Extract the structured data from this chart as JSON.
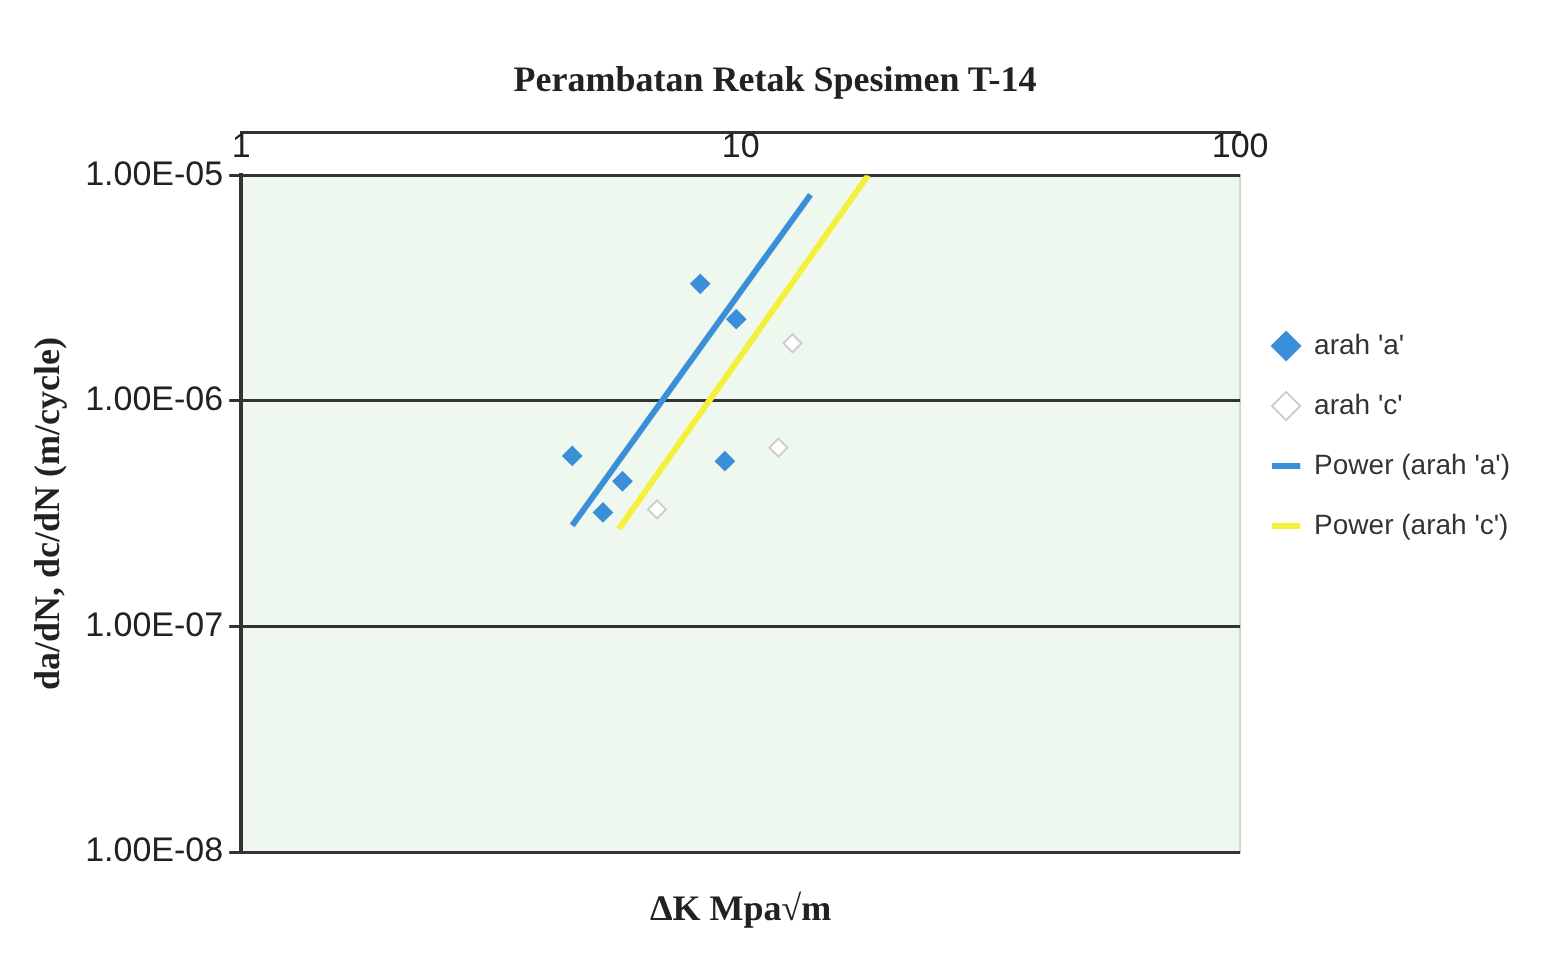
{
  "chart_data": {
    "type": "scatter",
    "title": "Perambatan Retak Spesimen T-14",
    "xlabel": "ΔK Mpa√m",
    "ylabel": "da/dN, dc/dN (m/cycle)",
    "log": "xy",
    "xlim": [
      1,
      100
    ],
    "xticks": [
      1,
      10,
      100
    ],
    "ylim": [
      1e-08,
      1e-05
    ],
    "yticks": [
      {
        "value": 1e-08,
        "label": "1.00E-08"
      },
      {
        "value": 1e-07,
        "label": "1.00E-07"
      },
      {
        "value": 1e-06,
        "label": "1.00E-06"
      },
      {
        "value": 1e-05,
        "label": "1.00E-05"
      }
    ],
    "grid": "y",
    "legend": "right",
    "marker": "diamond",
    "series": [
      {
        "name": "arah 'a'",
        "color": "#3a8fd8",
        "x": [
          8.3,
          9.8,
          4.6,
          9.3,
          5.8,
          5.3
        ],
        "values": [
          3.3e-06,
          2.3e-06,
          5.7e-07,
          5.4e-07,
          4.4e-07,
          3.2e-07
        ]
      },
      {
        "name": "arah 'c'",
        "color": "#ffffff",
        "x": [
          6.8,
          12.7,
          11.9
        ],
        "values": [
          3.3e-07,
          1.8e-06,
          6.2e-07
        ]
      },
      {
        "name": "Power (arah 'a')",
        "type": "line",
        "marker": "none",
        "color": "#3a8fd8",
        "x": [
          4.6,
          13.8
        ],
        "values": [
          2.8e-07,
          8.2e-06
        ]
      },
      {
        "name": "Power (arah 'c')",
        "type": "line",
        "marker": "none",
        "color": "#f5f03a",
        "x": [
          5.7,
          18
        ],
        "values": [
          2.7e-07,
          1e-05
        ]
      }
    ]
  }
}
